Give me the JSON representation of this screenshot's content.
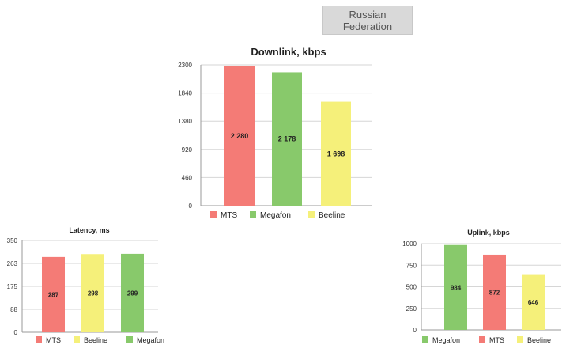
{
  "region": {
    "line1": "Russian",
    "line2": "Federation"
  },
  "chart_data": [
    {
      "id": "downlink",
      "type": "bar",
      "title": "Downlink, kbps",
      "ylim": [
        0,
        2300
      ],
      "yticks": [
        "0",
        "460",
        "920",
        "1380",
        "1840",
        "2300"
      ],
      "grid": true,
      "legend": "bottom",
      "categories": [
        "MTS",
        "Megafon",
        "Beeline"
      ],
      "values": [
        2280,
        2178,
        1698
      ],
      "labels": [
        "2 280",
        "2 178",
        "1 698"
      ],
      "colors": [
        "#f47b76",
        "#88c96b",
        "#f5f07a"
      ]
    },
    {
      "id": "latency",
      "type": "bar",
      "title": "Latency, ms",
      "ylim": [
        0,
        350
      ],
      "yticks": [
        "0",
        "88",
        "175",
        "263",
        "350"
      ],
      "grid": true,
      "legend": "bottom",
      "categories": [
        "MTS",
        "Beeline",
        "Megafon"
      ],
      "values": [
        287,
        298,
        299
      ],
      "labels": [
        "287",
        "298",
        "299"
      ],
      "colors": [
        "#f47b76",
        "#f5f07a",
        "#88c96b"
      ]
    },
    {
      "id": "uplink",
      "type": "bar",
      "title": "Uplink, kbps",
      "ylim": [
        0,
        1000
      ],
      "yticks": [
        "0",
        "250",
        "500",
        "750",
        "1000"
      ],
      "grid": true,
      "legend": "bottom",
      "categories": [
        "Megafon",
        "MTS",
        "Beeline"
      ],
      "values": [
        984,
        872,
        646
      ],
      "labels": [
        "984",
        "872",
        "646"
      ],
      "colors": [
        "#88c96b",
        "#f47b76",
        "#f5f07a"
      ]
    }
  ]
}
